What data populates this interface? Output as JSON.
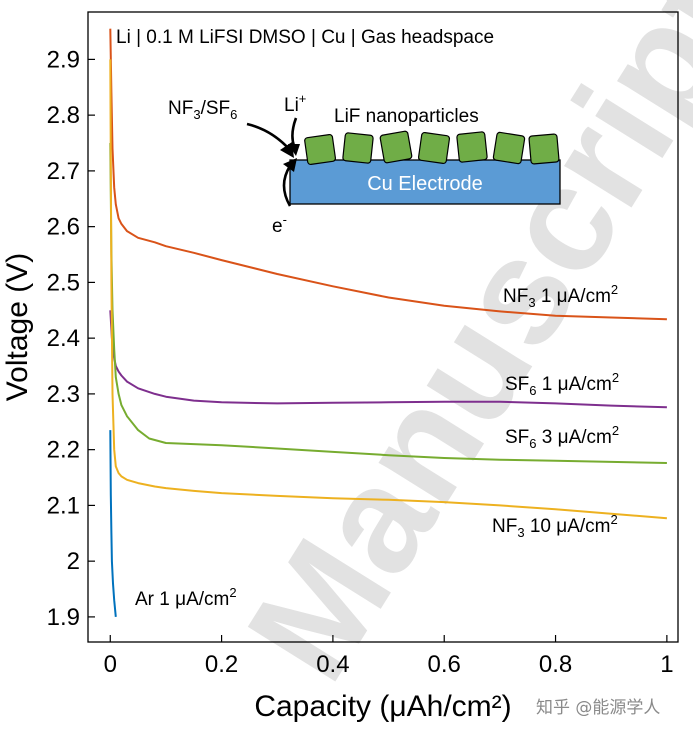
{
  "chart_data": {
    "type": "line",
    "title": "Li | 0.1 M LiFSI DMSO | Cu | Gas headspace",
    "xlabel": "Capacity (μAh/cm²)",
    "ylabel": "Voltage (V)",
    "xlim": [
      -0.04,
      1.02
    ],
    "ylim": [
      1.855,
      2.985
    ],
    "xticks": [
      0,
      0.2,
      0.4,
      0.6,
      0.8,
      1
    ],
    "xtick_labels": [
      "0",
      "0.2",
      "0.4",
      "0.6",
      "0.8",
      "1"
    ],
    "yticks": [
      1.9,
      2.0,
      2.1,
      2.2,
      2.3,
      2.4,
      2.5,
      2.6,
      2.7,
      2.8,
      2.9
    ],
    "ytick_labels": [
      "1.9",
      "2",
      "2.1",
      "2.2",
      "2.3",
      "2.4",
      "2.5",
      "2.6",
      "2.7",
      "2.8",
      "2.9"
    ],
    "grid": false,
    "series": [
      {
        "name": "NF3 1 μA/cm2",
        "label_main": "NF",
        "label_sub": "3",
        "label_rest": " 1 μA/cm",
        "label_sup": "2",
        "color": "#D95319",
        "x": [
          0,
          0.002,
          0.004,
          0.007,
          0.01,
          0.015,
          0.02,
          0.03,
          0.05,
          0.08,
          0.1,
          0.15,
          0.2,
          0.3,
          0.4,
          0.5,
          0.6,
          0.7,
          0.8,
          0.9,
          1.0
        ],
        "y": [
          2.955,
          2.84,
          2.74,
          2.67,
          2.64,
          2.615,
          2.605,
          2.592,
          2.58,
          2.572,
          2.565,
          2.553,
          2.54,
          2.515,
          2.493,
          2.473,
          2.458,
          2.448,
          2.44,
          2.437,
          2.434
        ]
      },
      {
        "name": "SF6 1 μA/cm2",
        "label_main": "SF",
        "label_sub": "6",
        "label_rest": " 1 μA/cm",
        "label_sup": "2",
        "color": "#7E2F8E",
        "x": [
          0,
          0.003,
          0.006,
          0.01,
          0.015,
          0.02,
          0.03,
          0.05,
          0.08,
          0.1,
          0.15,
          0.2,
          0.3,
          0.4,
          0.5,
          0.6,
          0.7,
          0.8,
          0.9,
          1.0
        ],
        "y": [
          2.45,
          2.4,
          2.37,
          2.35,
          2.34,
          2.333,
          2.322,
          2.31,
          2.3,
          2.295,
          2.288,
          2.285,
          2.283,
          2.284,
          2.285,
          2.286,
          2.286,
          2.283,
          2.279,
          2.276
        ]
      },
      {
        "name": "SF6 3 μA/cm2",
        "label_main": "SF",
        "label_sub": "6",
        "label_rest": " 3 μA/cm",
        "label_sup": "2",
        "color": "#77AC30",
        "x": [
          0,
          0.002,
          0.004,
          0.007,
          0.01,
          0.015,
          0.02,
          0.03,
          0.05,
          0.07,
          0.1,
          0.15,
          0.2,
          0.3,
          0.4,
          0.5,
          0.6,
          0.7,
          0.8,
          0.9,
          1.0
        ],
        "y": [
          2.75,
          2.55,
          2.45,
          2.38,
          2.33,
          2.3,
          2.28,
          2.26,
          2.235,
          2.22,
          2.212,
          2.21,
          2.208,
          2.202,
          2.196,
          2.19,
          2.185,
          2.182,
          2.18,
          2.178,
          2.176
        ]
      },
      {
        "name": "NF3 10 μA/cm2",
        "label_main": "NF",
        "label_sub": "3",
        "label_rest": " 10 μA/cm",
        "label_sup": "2",
        "color": "#EDB120",
        "x": [
          0,
          0.002,
          0.004,
          0.007,
          0.01,
          0.015,
          0.02,
          0.03,
          0.05,
          0.08,
          0.1,
          0.15,
          0.2,
          0.3,
          0.4,
          0.5,
          0.6,
          0.7,
          0.8,
          0.9,
          1.0
        ],
        "y": [
          2.9,
          2.5,
          2.3,
          2.2,
          2.17,
          2.158,
          2.152,
          2.146,
          2.14,
          2.134,
          2.131,
          2.126,
          2.122,
          2.117,
          2.113,
          2.11,
          2.106,
          2.1,
          2.093,
          2.085,
          2.077
        ]
      },
      {
        "name": "Ar 1 μA/cm2",
        "label_main": "Ar 1 μA/cm",
        "label_sub": "",
        "label_rest": "",
        "label_sup": "2",
        "color": "#0072BD",
        "x": [
          0,
          0.001,
          0.002,
          0.003,
          0.005,
          0.007,
          0.01
        ],
        "y": [
          2.235,
          2.12,
          2.05,
          2.0,
          1.96,
          1.93,
          1.9
        ]
      }
    ],
    "inset": {
      "gas_label_main": "NF",
      "gas_label_sub1": "3",
      "gas_label_mid": "/SF",
      "gas_label_sub2": "6",
      "li_label": "Li",
      "li_sup": "+",
      "electron_label": "e",
      "electron_sup": "-",
      "particles_label": "LiF nanoparticles",
      "electrode_label": "Cu Electrode",
      "electrode_color": "#5B9BD5",
      "particle_color": "#70AD47"
    }
  },
  "watermark": {
    "text": "Manuscript",
    "zhihu": "知乎 @能源学人"
  }
}
